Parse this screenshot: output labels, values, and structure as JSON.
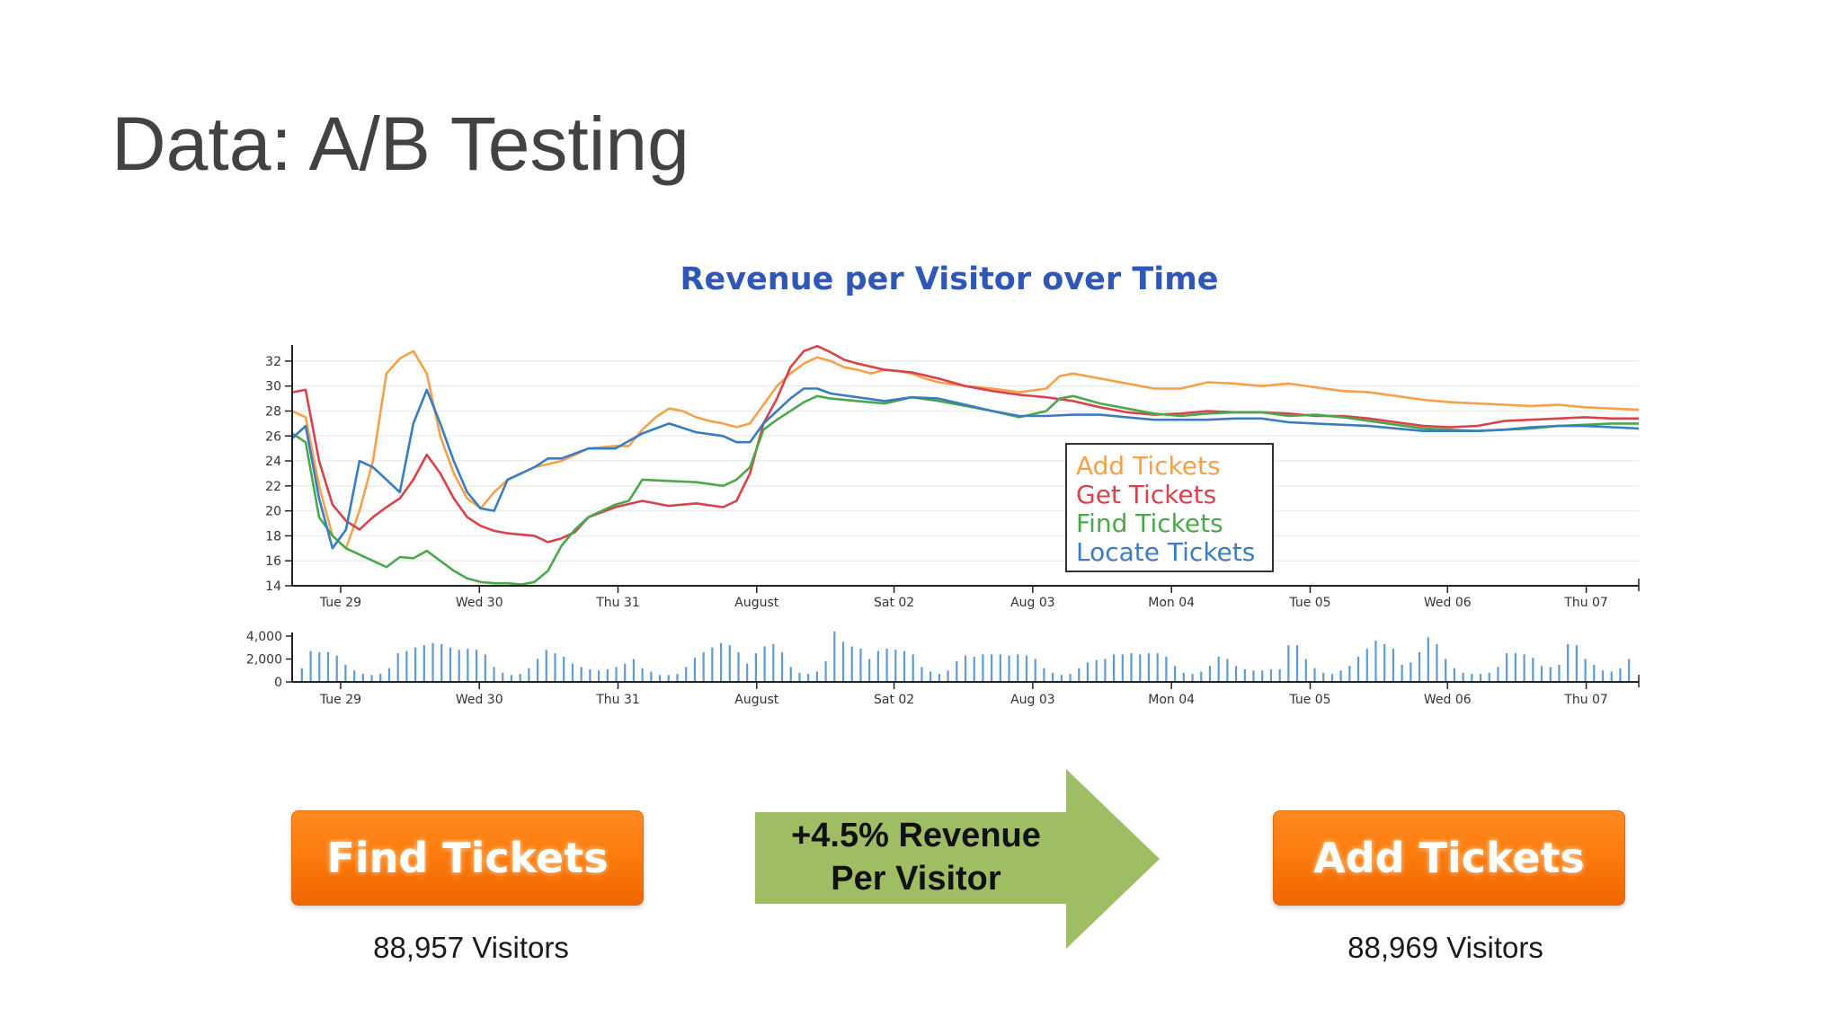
{
  "slide": {
    "title": "Data: A/B Testing"
  },
  "chart_data": {
    "type": "line",
    "title": "Revenue per Visitor over Time",
    "xlabel": "",
    "ylabel": "",
    "ylim": [
      14,
      33
    ],
    "yticks": [
      14,
      16,
      18,
      20,
      22,
      24,
      26,
      28,
      30,
      32
    ],
    "xlim": [
      0,
      100
    ],
    "xticks": [
      {
        "x": 3.6,
        "label": "Tue 29"
      },
      {
        "x": 13.9,
        "label": "Wed 30"
      },
      {
        "x": 24.2,
        "label": "Thu 31"
      },
      {
        "x": 34.5,
        "label": "August"
      },
      {
        "x": 44.7,
        "label": "Sat 02"
      },
      {
        "x": 55.0,
        "label": "Aug 03"
      },
      {
        "x": 65.3,
        "label": "Mon 04"
      },
      {
        "x": 75.6,
        "label": "Tue 05"
      },
      {
        "x": 85.8,
        "label": "Wed 06"
      },
      {
        "x": 96.1,
        "label": "Thu 07"
      }
    ],
    "legend": {
      "position": "center-right"
    },
    "grid": true,
    "series": [
      {
        "name": "Add Tickets",
        "color": "#f5a04a",
        "points": [
          [
            0,
            28
          ],
          [
            1,
            27.5
          ],
          [
            2,
            22
          ],
          [
            3,
            18
          ],
          [
            4,
            17
          ],
          [
            5,
            20
          ],
          [
            6,
            24
          ],
          [
            7,
            31
          ],
          [
            8,
            32.2
          ],
          [
            9,
            32.8
          ],
          [
            10,
            31
          ],
          [
            11,
            26
          ],
          [
            12,
            23
          ],
          [
            13,
            21
          ],
          [
            14,
            20.2
          ],
          [
            15,
            21.5
          ],
          [
            16,
            22.5
          ],
          [
            17,
            23
          ],
          [
            18,
            23.5
          ],
          [
            20,
            24
          ],
          [
            22,
            25
          ],
          [
            24,
            25.2
          ],
          [
            25,
            25.2
          ],
          [
            26,
            26.5
          ],
          [
            27,
            27.5
          ],
          [
            28,
            28.2
          ],
          [
            29,
            28
          ],
          [
            30,
            27.5
          ],
          [
            31,
            27.2
          ],
          [
            32,
            27
          ],
          [
            33,
            26.7
          ],
          [
            34,
            27
          ],
          [
            35,
            28.5
          ],
          [
            36,
            30
          ],
          [
            37,
            31
          ],
          [
            38,
            31.8
          ],
          [
            39,
            32.3
          ],
          [
            40,
            32
          ],
          [
            41,
            31.5
          ],
          [
            42,
            31.3
          ],
          [
            43,
            31
          ],
          [
            44,
            31.3
          ],
          [
            45,
            31.2
          ],
          [
            46,
            31
          ],
          [
            47,
            30.6
          ],
          [
            48,
            30.3
          ],
          [
            50,
            30
          ],
          [
            52,
            29.8
          ],
          [
            54,
            29.5
          ],
          [
            56,
            29.8
          ],
          [
            57,
            30.8
          ],
          [
            58,
            31
          ],
          [
            60,
            30.6
          ],
          [
            62,
            30.2
          ],
          [
            64,
            29.8
          ],
          [
            66,
            29.8
          ],
          [
            68,
            30.3
          ],
          [
            70,
            30.2
          ],
          [
            72,
            30
          ],
          [
            74,
            30.2
          ],
          [
            76,
            29.9
          ],
          [
            78,
            29.6
          ],
          [
            80,
            29.5
          ],
          [
            82,
            29.2
          ],
          [
            84,
            28.9
          ],
          [
            86,
            28.7
          ],
          [
            88,
            28.6
          ],
          [
            90,
            28.5
          ],
          [
            92,
            28.4
          ],
          [
            94,
            28.5
          ],
          [
            96,
            28.3
          ],
          [
            98,
            28.2
          ],
          [
            100,
            28.1
          ]
        ]
      },
      {
        "name": "Get Tickets",
        "color": "#d9424c",
        "points": [
          [
            0,
            29.5
          ],
          [
            1,
            29.7
          ],
          [
            2,
            24
          ],
          [
            3,
            20.5
          ],
          [
            4,
            19.2
          ],
          [
            5,
            18.5
          ],
          [
            6,
            19.5
          ],
          [
            7,
            20.3
          ],
          [
            8,
            21
          ],
          [
            9,
            22.5
          ],
          [
            10,
            24.5
          ],
          [
            11,
            23
          ],
          [
            12,
            21
          ],
          [
            13,
            19.5
          ],
          [
            14,
            18.8
          ],
          [
            15,
            18.4
          ],
          [
            16,
            18.2
          ],
          [
            18,
            18
          ],
          [
            19,
            17.5
          ],
          [
            20,
            17.8
          ],
          [
            21,
            18.3
          ],
          [
            22,
            19.5
          ],
          [
            24,
            20.3
          ],
          [
            26,
            20.8
          ],
          [
            28,
            20.4
          ],
          [
            30,
            20.6
          ],
          [
            32,
            20.3
          ],
          [
            33,
            20.8
          ],
          [
            34,
            23
          ],
          [
            35,
            27
          ],
          [
            36,
            29
          ],
          [
            37,
            31.5
          ],
          [
            38,
            32.8
          ],
          [
            39,
            33.2
          ],
          [
            40,
            32.7
          ],
          [
            41,
            32.1
          ],
          [
            42,
            31.8
          ],
          [
            44,
            31.3
          ],
          [
            46,
            31.1
          ],
          [
            48,
            30.6
          ],
          [
            50,
            30
          ],
          [
            52,
            29.6
          ],
          [
            54,
            29.3
          ],
          [
            56,
            29.1
          ],
          [
            58,
            28.8
          ],
          [
            60,
            28.3
          ],
          [
            62,
            27.9
          ],
          [
            64,
            27.7
          ],
          [
            66,
            27.8
          ],
          [
            68,
            28
          ],
          [
            70,
            27.9
          ],
          [
            72,
            27.9
          ],
          [
            74,
            27.8
          ],
          [
            76,
            27.6
          ],
          [
            78,
            27.6
          ],
          [
            80,
            27.4
          ],
          [
            82,
            27.1
          ],
          [
            84,
            26.8
          ],
          [
            86,
            26.7
          ],
          [
            88,
            26.8
          ],
          [
            90,
            27.2
          ],
          [
            92,
            27.3
          ],
          [
            94,
            27.4
          ],
          [
            96,
            27.5
          ],
          [
            98,
            27.4
          ],
          [
            100,
            27.4
          ]
        ]
      },
      {
        "name": "Find Tickets",
        "color": "#4aa84a",
        "points": [
          [
            0,
            26.2
          ],
          [
            1,
            25.5
          ],
          [
            2,
            19.5
          ],
          [
            3,
            18
          ],
          [
            4,
            17
          ],
          [
            5,
            16.5
          ],
          [
            6,
            16
          ],
          [
            7,
            15.5
          ],
          [
            8,
            16.3
          ],
          [
            9,
            16.2
          ],
          [
            10,
            16.8
          ],
          [
            11,
            16
          ],
          [
            12,
            15.2
          ],
          [
            13,
            14.6
          ],
          [
            14,
            14.3
          ],
          [
            15,
            14.2
          ],
          [
            16,
            14.2
          ],
          [
            17,
            14.1
          ],
          [
            18,
            14.3
          ],
          [
            19,
            15.2
          ],
          [
            20,
            17.2
          ],
          [
            21,
            18.5
          ],
          [
            22,
            19.5
          ],
          [
            24,
            20.5
          ],
          [
            25,
            20.8
          ],
          [
            26,
            22.5
          ],
          [
            28,
            22.4
          ],
          [
            30,
            22.3
          ],
          [
            32,
            22
          ],
          [
            33,
            22.5
          ],
          [
            34,
            23.5
          ],
          [
            35,
            26.5
          ],
          [
            36,
            27.3
          ],
          [
            37,
            28
          ],
          [
            38,
            28.7
          ],
          [
            39,
            29.2
          ],
          [
            40,
            29
          ],
          [
            42,
            28.8
          ],
          [
            44,
            28.6
          ],
          [
            46,
            29.1
          ],
          [
            48,
            28.8
          ],
          [
            50,
            28.4
          ],
          [
            52,
            28
          ],
          [
            54,
            27.5
          ],
          [
            56,
            28
          ],
          [
            57,
            29
          ],
          [
            58,
            29.2
          ],
          [
            60,
            28.6
          ],
          [
            62,
            28.2
          ],
          [
            64,
            27.8
          ],
          [
            66,
            27.6
          ],
          [
            68,
            27.8
          ],
          [
            70,
            27.9
          ],
          [
            72,
            27.9
          ],
          [
            74,
            27.6
          ],
          [
            76,
            27.7
          ],
          [
            78,
            27.5
          ],
          [
            80,
            27.2
          ],
          [
            82,
            26.9
          ],
          [
            84,
            26.6
          ],
          [
            86,
            26.5
          ],
          [
            88,
            26.4
          ],
          [
            90,
            26.5
          ],
          [
            92,
            26.6
          ],
          [
            94,
            26.8
          ],
          [
            96,
            26.9
          ],
          [
            98,
            27
          ],
          [
            100,
            27
          ]
        ]
      },
      {
        "name": "Locate Tickets",
        "color": "#3a7cc0",
        "points": [
          [
            0,
            25.8
          ],
          [
            1,
            26.8
          ],
          [
            2,
            21
          ],
          [
            3,
            17
          ],
          [
            4,
            18.5
          ],
          [
            5,
            24
          ],
          [
            6,
            23.5
          ],
          [
            7,
            22.5
          ],
          [
            8,
            21.5
          ],
          [
            9,
            27
          ],
          [
            10,
            29.7
          ],
          [
            11,
            27
          ],
          [
            12,
            24
          ],
          [
            13,
            21.5
          ],
          [
            14,
            20.2
          ],
          [
            15,
            20
          ],
          [
            16,
            22.5
          ],
          [
            17,
            23
          ],
          [
            18,
            23.5
          ],
          [
            19,
            24.2
          ],
          [
            20,
            24.2
          ],
          [
            22,
            25
          ],
          [
            24,
            25
          ],
          [
            26,
            26.2
          ],
          [
            28,
            27
          ],
          [
            30,
            26.3
          ],
          [
            32,
            26
          ],
          [
            33,
            25.5
          ],
          [
            34,
            25.5
          ],
          [
            35,
            27
          ],
          [
            36,
            28
          ],
          [
            37,
            29
          ],
          [
            38,
            29.8
          ],
          [
            39,
            29.8
          ],
          [
            40,
            29.4
          ],
          [
            42,
            29.1
          ],
          [
            44,
            28.8
          ],
          [
            46,
            29.1
          ],
          [
            48,
            29
          ],
          [
            50,
            28.5
          ],
          [
            52,
            28
          ],
          [
            54,
            27.6
          ],
          [
            56,
            27.6
          ],
          [
            58,
            27.7
          ],
          [
            60,
            27.7
          ],
          [
            62,
            27.5
          ],
          [
            64,
            27.3
          ],
          [
            66,
            27.3
          ],
          [
            68,
            27.3
          ],
          [
            70,
            27.4
          ],
          [
            72,
            27.4
          ],
          [
            74,
            27.1
          ],
          [
            76,
            27
          ],
          [
            78,
            26.9
          ],
          [
            80,
            26.8
          ],
          [
            82,
            26.6
          ],
          [
            84,
            26.4
          ],
          [
            86,
            26.4
          ],
          [
            88,
            26.4
          ],
          [
            90,
            26.5
          ],
          [
            92,
            26.7
          ],
          [
            94,
            26.8
          ],
          [
            96,
            26.8
          ],
          [
            98,
            26.7
          ],
          [
            100,
            26.6
          ]
        ]
      }
    ],
    "volume": {
      "ylim": [
        0,
        4000
      ],
      "yticks": [
        {
          "v": 0,
          "label": "0"
        },
        {
          "v": 2000,
          "label": "2,000"
        },
        {
          "v": 4000,
          "label": "4,000"
        }
      ],
      "color": "#5d9bd0",
      "values": [
        1200,
        2700,
        2600,
        2600,
        2300,
        1500,
        1000,
        700,
        600,
        700,
        1200,
        2500,
        2700,
        3000,
        3200,
        3400,
        3300,
        3000,
        2800,
        2900,
        2800,
        2400,
        1300,
        800,
        600,
        700,
        1200,
        2000,
        2800,
        2500,
        2200,
        1600,
        1300,
        1100,
        1000,
        1100,
        1300,
        1600,
        2000,
        1200,
        900,
        600,
        600,
        700,
        1300,
        2100,
        2600,
        3000,
        3400,
        3200,
        2600,
        1600,
        2500,
        3100,
        3300,
        2600,
        1300,
        800,
        700,
        900,
        1800,
        4400,
        3500,
        3100,
        2900,
        2000,
        2700,
        2900,
        2800,
        2700,
        2400,
        1300,
        900,
        700,
        1000,
        1800,
        2300,
        2200,
        2400,
        2400,
        2400,
        2300,
        2400,
        2300,
        2000,
        1200,
        800,
        600,
        700,
        1200,
        1700,
        1900,
        2000,
        2400,
        2400,
        2500,
        2400,
        2500,
        2500,
        2200,
        1400,
        800,
        700,
        900,
        1400,
        2200,
        2000,
        1400,
        1100,
        1000,
        1000,
        1100,
        1100,
        3200,
        3200,
        2000,
        1200,
        800,
        700,
        1000,
        1400,
        2200,
        2900,
        3600,
        3300,
        2900,
        1500,
        1700,
        2600,
        3900,
        3300,
        2000,
        1200,
        800,
        700,
        700,
        800,
        1300,
        2500,
        2500,
        2400,
        2100,
        1400,
        1300,
        1500,
        3300,
        3200,
        2000,
        1500,
        1000,
        900,
        1200,
        2000
      ]
    }
  },
  "buttons": {
    "left_label": "Find Tickets",
    "right_label": "Add Tickets"
  },
  "visitors": {
    "left": "88,957 Visitors",
    "right": "88,969 Visitors"
  },
  "arrow": {
    "line1": "+4.5% Revenue",
    "line2": "Per Visitor",
    "color": "#9fbd62"
  },
  "colors": {
    "title": "#2f57b8",
    "cta_orange": "#fb7a0c"
  }
}
